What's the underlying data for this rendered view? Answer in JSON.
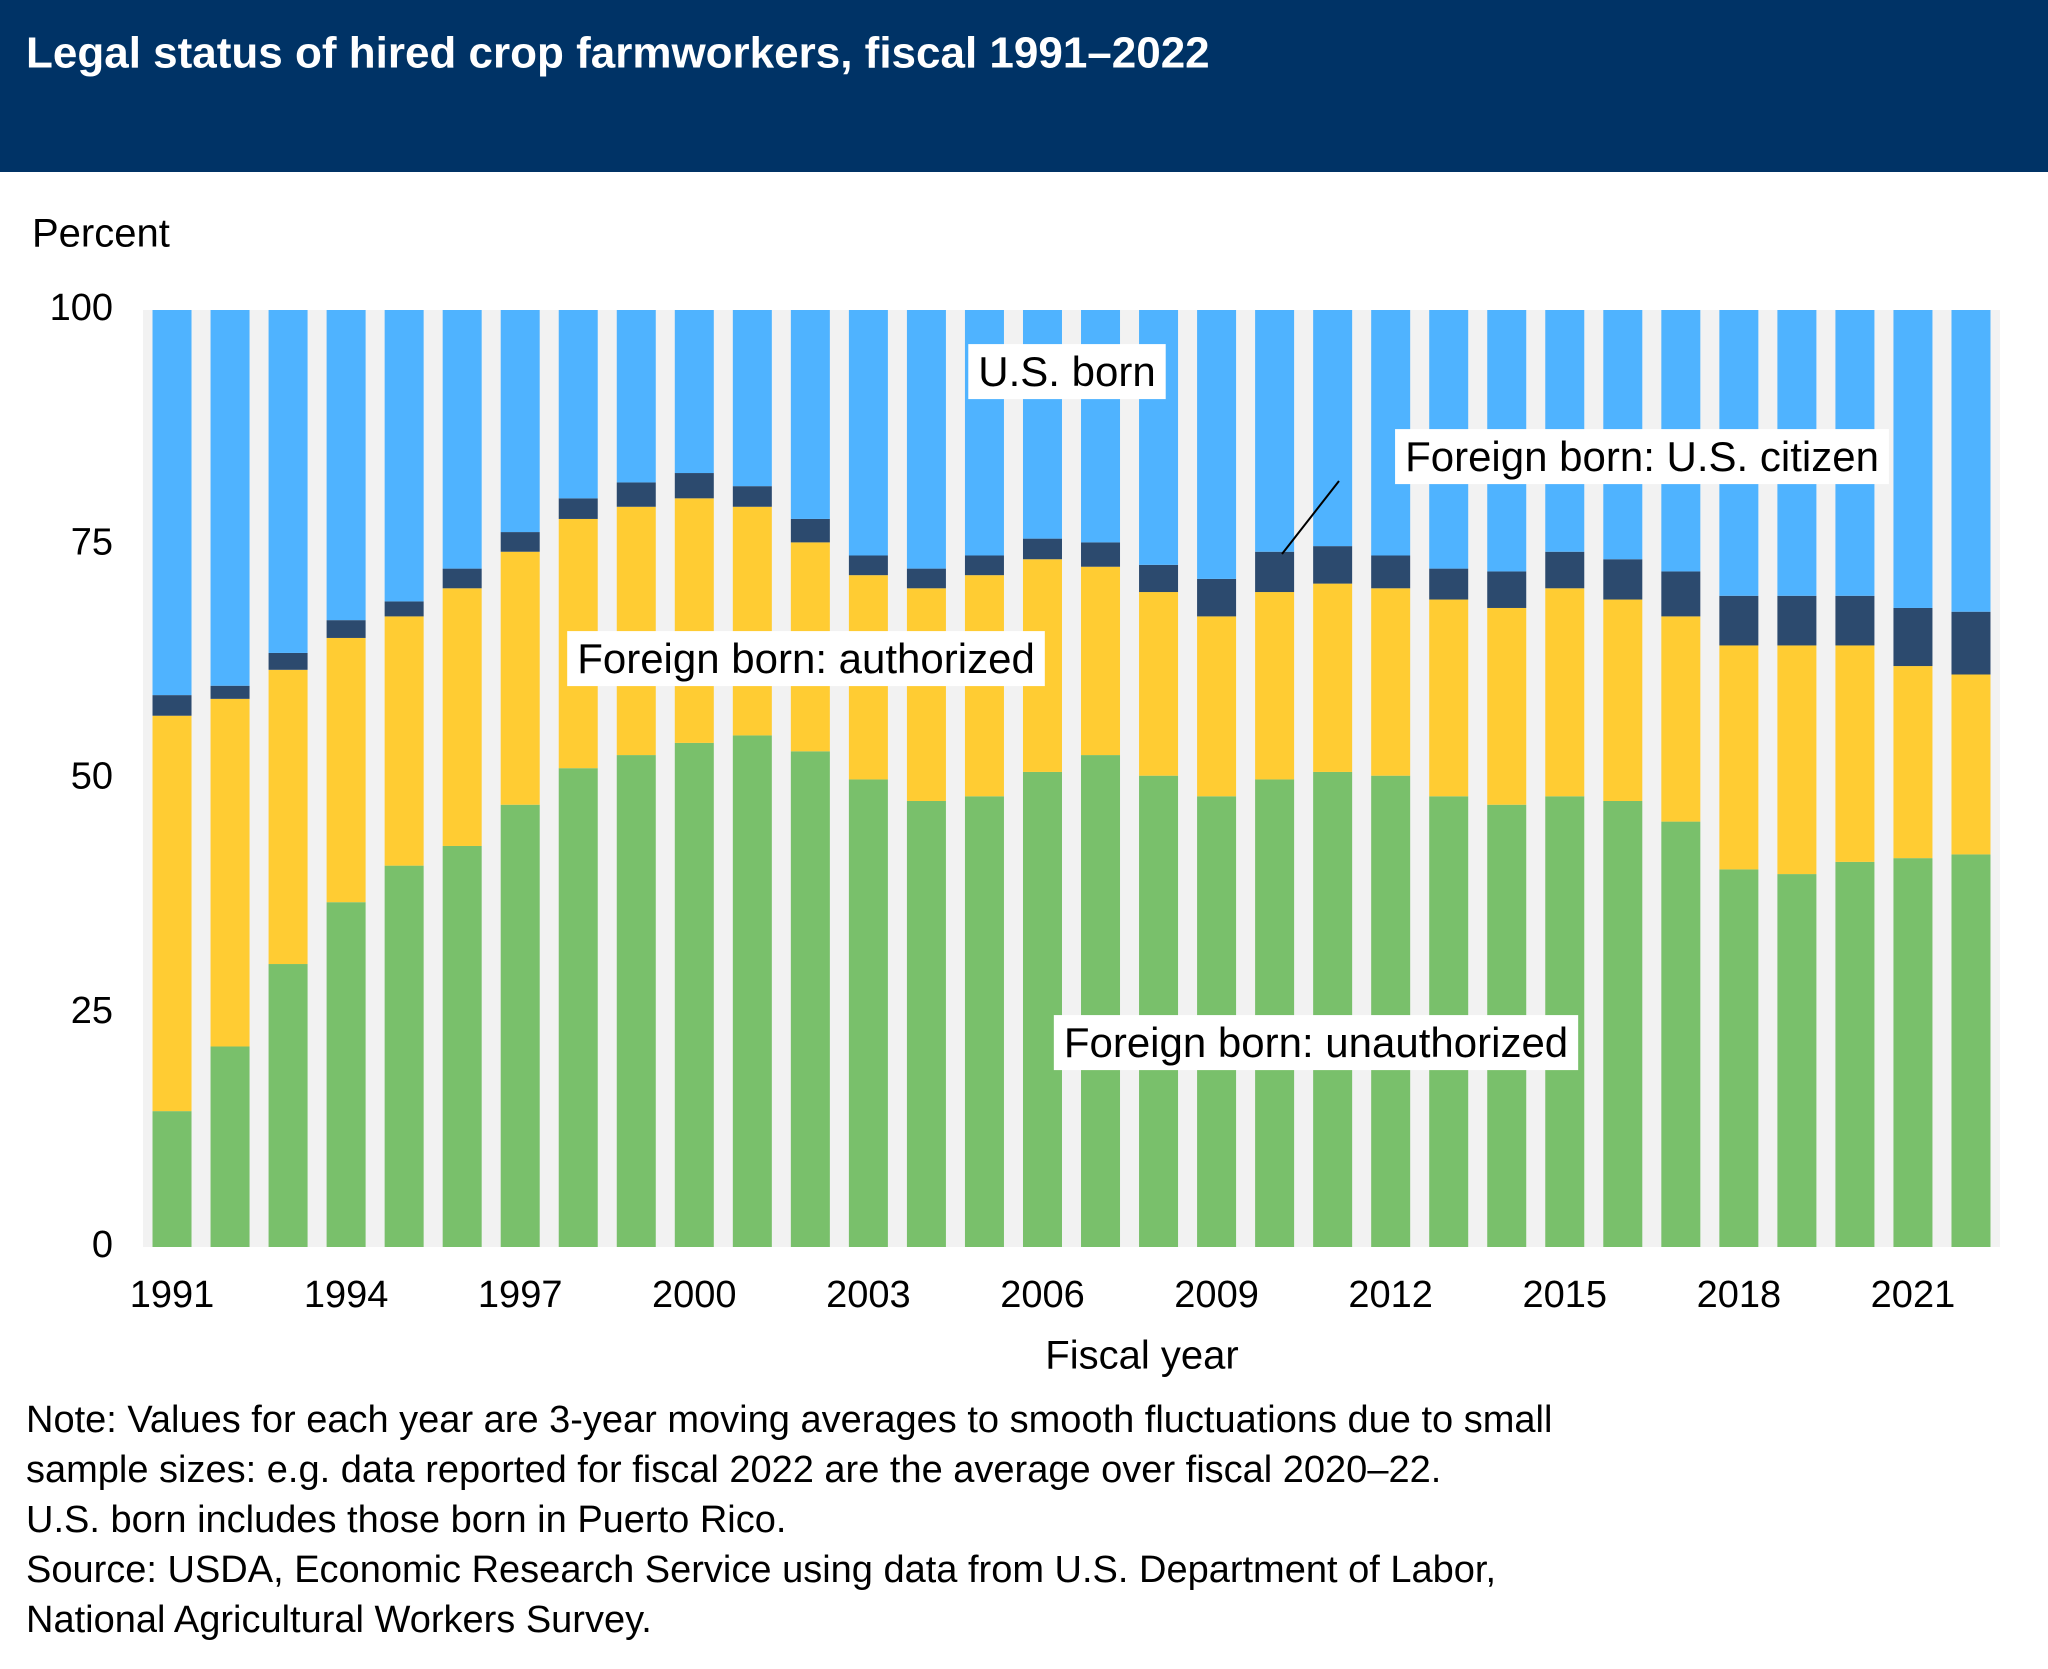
{
  "chart_data": {
    "type": "stacked_bar",
    "title": "Legal status of hired crop farmworkers, fiscal 1991–2022",
    "y_label": "Percent",
    "x_label": "Fiscal year",
    "categories": [
      "1991",
      null,
      null,
      "1994",
      null,
      null,
      "1997",
      null,
      null,
      "2000",
      null,
      null,
      "2003",
      null,
      null,
      "2006",
      null,
      null,
      "2009",
      null,
      null,
      "2012",
      null,
      null,
      "2015",
      null,
      null,
      "2018",
      null,
      null,
      "2021",
      null
    ],
    "series": [
      {
        "name": "Foreign born: unauthorized",
        "color": "#79c06b",
        "values": [
          14.5,
          21.4,
          30.2,
          36.8,
          40.7,
          42.8,
          47.2,
          51.1,
          52.5,
          53.8,
          54.6,
          52.9,
          49.9,
          47.6,
          48.1,
          50.7,
          52.5,
          50.3,
          48.1,
          49.9,
          50.7,
          50.3,
          48.1,
          47.2,
          48.1,
          47.6,
          45.4,
          40.3,
          39.8,
          41.1,
          41.5,
          41.9
        ]
      },
      {
        "name": "Foreign born: authorized",
        "color": "#ffcc33",
        "values": [
          42.2,
          37.1,
          31.4,
          28.2,
          26.6,
          27.5,
          27.0,
          26.6,
          26.5,
          26.1,
          24.4,
          22.3,
          21.8,
          22.7,
          23.6,
          22.7,
          20.1,
          19.6,
          19.2,
          20.0,
          20.1,
          20.0,
          21.0,
          21.0,
          22.2,
          21.5,
          21.9,
          23.9,
          24.4,
          23.1,
          20.5,
          19.2
        ]
      },
      {
        "name": "Foreign born: U.S. citizen",
        "color": "#2c4a6e",
        "values": [
          2.2,
          1.4,
          1.8,
          1.9,
          1.6,
          2.1,
          2.1,
          2.2,
          2.6,
          2.7,
          2.2,
          2.5,
          2.1,
          2.1,
          2.1,
          2.2,
          2.6,
          2.9,
          4.0,
          4.3,
          4.0,
          3.5,
          3.3,
          3.9,
          3.9,
          4.3,
          4.8,
          5.3,
          5.3,
          5.3,
          6.2,
          6.7
        ]
      },
      {
        "name": "U.S. born",
        "color": "#4fb3ff",
        "values": [
          41.1,
          40.1,
          36.6,
          33.1,
          31.1,
          27.6,
          23.7,
          20.1,
          18.4,
          17.4,
          18.8,
          22.3,
          26.2,
          27.6,
          26.2,
          24.4,
          24.8,
          27.2,
          28.7,
          25.8,
          25.2,
          26.2,
          27.6,
          27.9,
          25.8,
          26.6,
          27.9,
          30.5,
          30.5,
          30.5,
          31.8,
          32.2
        ]
      }
    ],
    "ylim": [
      0,
      100
    ],
    "yticks": [
      0,
      25,
      50,
      75,
      100
    ],
    "grid": false,
    "notes": [
      "Note: Values for each year are 3-year moving averages to smooth fluctuations due to small",
      "sample sizes: e.g. data reported for fiscal 2022 are the average over fiscal 2020–22.",
      "U.S. born includes those born in Puerto Rico.",
      "Source: USDA, Economic Research Service using data from U.S. Department of Labor,",
      "National Agricultural Workers Survey."
    ]
  }
}
